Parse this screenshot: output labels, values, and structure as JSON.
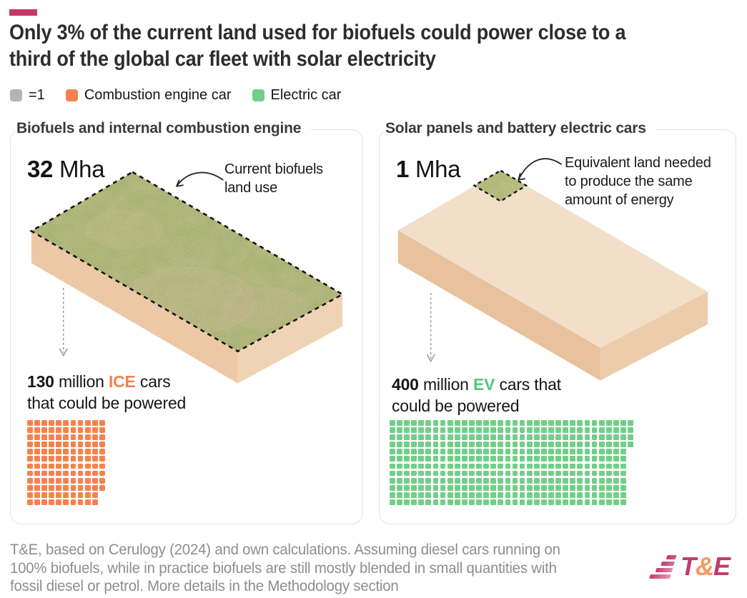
{
  "title_lines": [
    "Only 3% of the current land used for biofuels could power close to a",
    "third of the global car fleet with solar electricity"
  ],
  "legend": {
    "unit": {
      "label": "=1",
      "color": "#b5b3b3"
    },
    "ice": {
      "label": "Combustion engine car",
      "color": "#f5824e"
    },
    "ev": {
      "label": "Electric car",
      "color": "#72ce88"
    }
  },
  "panels": [
    {
      "title": "Biofuels and internal combustion engine",
      "area": {
        "value": "32",
        "unit": "Mha"
      },
      "annotation": {
        "line1": "Current biofuels",
        "line2": "land use",
        "line3": ""
      },
      "caption": {
        "value": "130",
        "mid": " million ",
        "highlight": "ICE",
        "tail": " cars",
        "line2": "that could be powered",
        "highlight_color": "#f5824e"
      },
      "waffle": {
        "count": 130,
        "rows": 12,
        "color": "#f5824e",
        "unit": "1 square = 1 million cars"
      }
    },
    {
      "title": "Solar panels and battery electric cars",
      "area": {
        "value": "1",
        "unit": "Mha"
      },
      "annotation": {
        "line1": "Equivalent land needed",
        "line2": "to produce the same",
        "line3": "amount of energy"
      },
      "caption": {
        "value": "400",
        "mid": " million ",
        "highlight": "EV",
        "tail": " cars that",
        "line2": "could be powered",
        "highlight_color": "#56c877"
      },
      "waffle": {
        "count": 400,
        "rows": 12,
        "color": "#72ce88",
        "unit": "1 square = 1 million cars"
      }
    }
  ],
  "footer": {
    "source_lines": [
      "T&E, based on Cerulogy (2024) and own calculations. Assuming diesel cars running on",
      "100% biofuels, while in practice biofuels are still mostly blended in small quantities with",
      "fossil diesel or petrol. More details in the Methodology section"
    ],
    "logo": {
      "t": "T",
      "amp": "&",
      "e": "E",
      "pink": "#c23a6e",
      "orange": "#f59a5f"
    }
  },
  "colors": {
    "accent": "#c53569",
    "grass_top": "#8d9a60",
    "land_side_left": "#ecc8a5",
    "land_side_right": "#f0d3b4",
    "sand_top": "#f3dfc9",
    "sand_side_left": "#e8c29d",
    "sand_side_right": "#edccab",
    "dashed_outline": "#141414",
    "text_dark": "#2d2d2d",
    "text_gray": "#8e8e8e"
  },
  "chart_data": {
    "type": "pictograph",
    "title": "Only 3% of the current land used for biofuels could power close to a third of the global car fleet with solar electricity",
    "unit": "1 square = 1 million cars",
    "categories": [
      "Biofuels and internal combustion engine",
      "Solar panels and battery electric cars"
    ],
    "series": [
      {
        "name": "Land area (Mha)",
        "values": [
          32,
          1
        ]
      },
      {
        "name": "Cars that could be powered (million)",
        "values": [
          130,
          400
        ]
      }
    ],
    "annotations": [
      "Current biofuels land use",
      "Equivalent land needed to produce the same amount of energy"
    ],
    "legend_entries": [
      "=1",
      "Combustion engine car",
      "Electric car"
    ]
  }
}
